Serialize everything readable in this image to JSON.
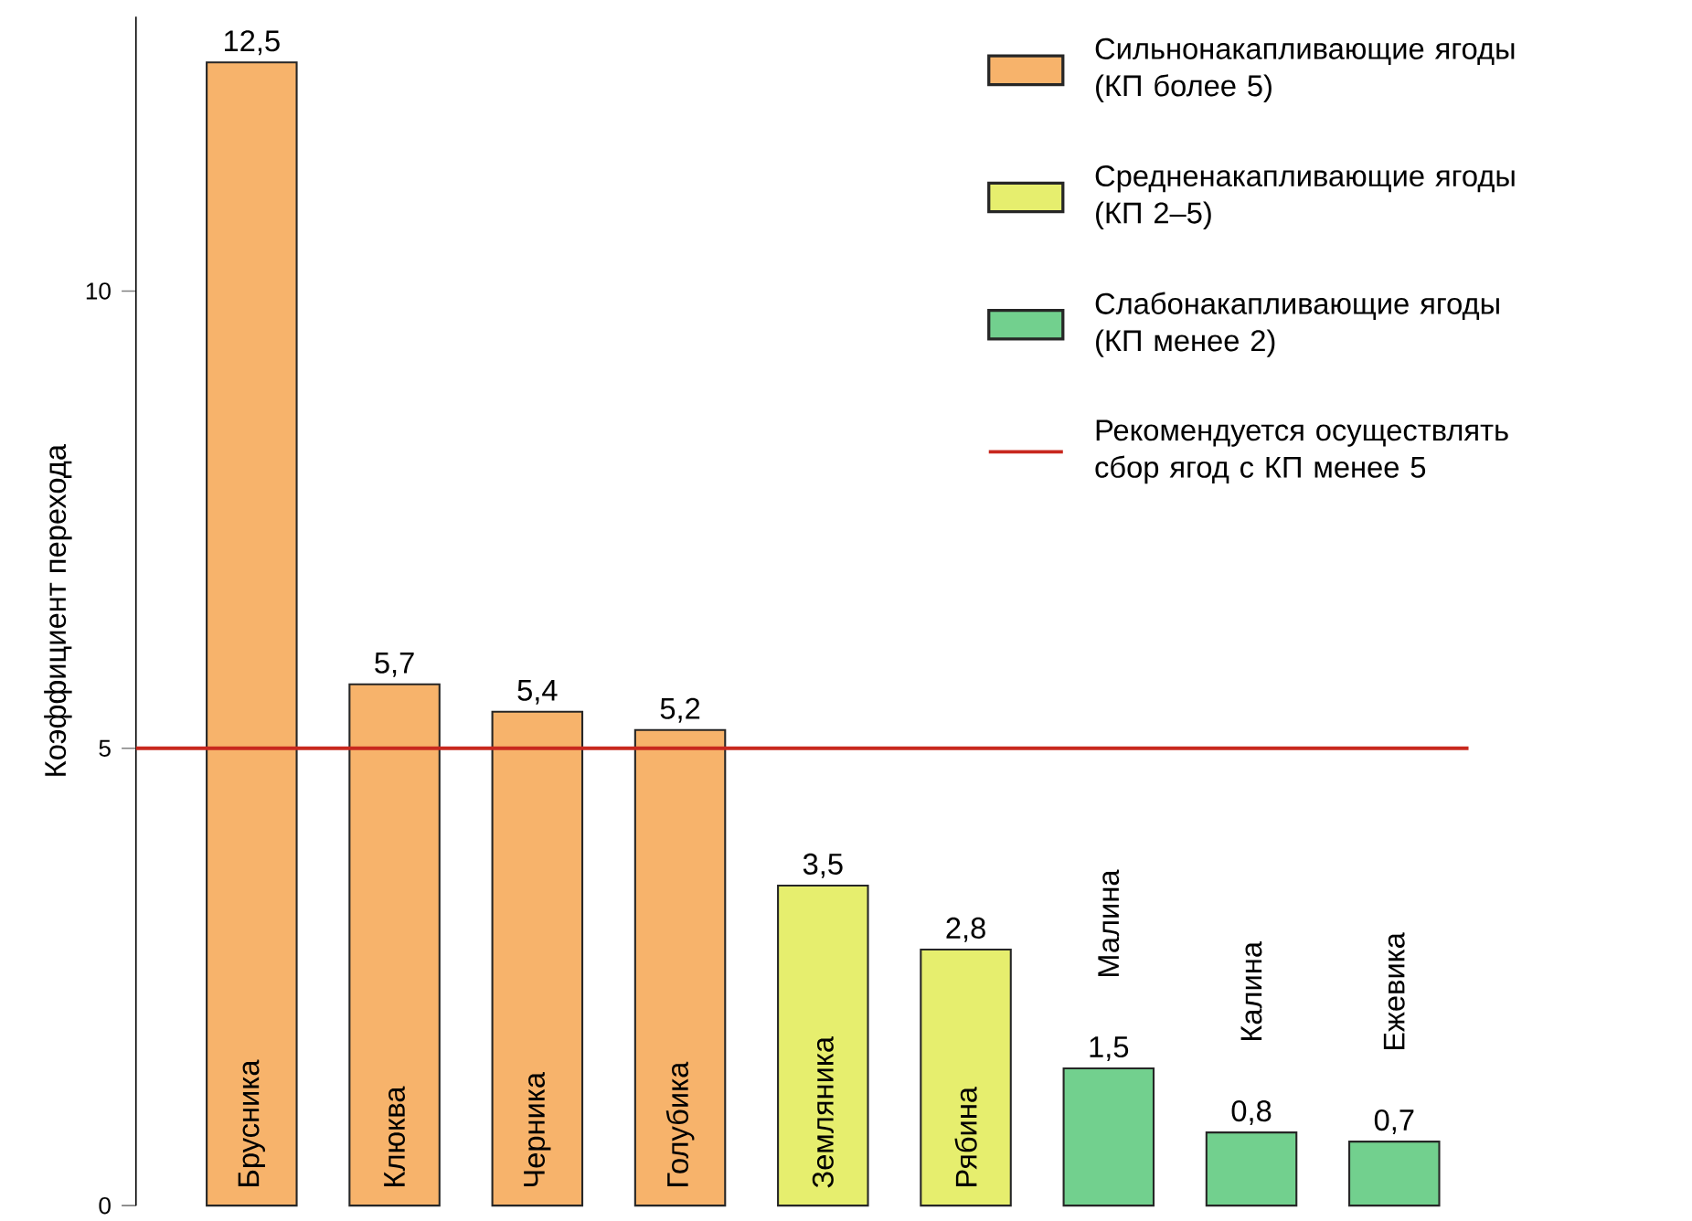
{
  "chart_data": {
    "type": "bar",
    "ylabel": "Коэффициент перехода",
    "categories": [
      "Брусника",
      "Клюква",
      "Черника",
      "Голубика",
      "Земляника",
      "Рябина",
      "Малина",
      "Калина",
      "Ежевика"
    ],
    "series": [
      {
        "name": "Сильнонакапливающие ягоды (КП более 5)",
        "color": "#f7b36b",
        "values": [
          12.5,
          5.7,
          5.4,
          5.2,
          null,
          null,
          null,
          null,
          null
        ],
        "value_labels": [
          "12,5",
          "5,7",
          "5,4",
          "5,2",
          null,
          null,
          null,
          null,
          null
        ]
      },
      {
        "name": "Средненакапливающие ягоды (КП 2–5)",
        "color": "#e6ee6e",
        "values": [
          null,
          null,
          null,
          null,
          3.5,
          2.8,
          null,
          null,
          null
        ],
        "value_labels": [
          null,
          null,
          null,
          null,
          "3,5",
          "2,8",
          null,
          null,
          null
        ]
      },
      {
        "name": "Слабонакапливающие ягоды (КП менее 2)",
        "color": "#72d08e",
        "values": [
          null,
          null,
          null,
          null,
          null,
          null,
          1.5,
          0.8,
          0.7
        ],
        "value_labels": [
          null,
          null,
          null,
          null,
          null,
          null,
          "1,5",
          "0,8",
          "0,7"
        ]
      }
    ],
    "ylim": [
      0,
      13
    ],
    "yticks": [
      0,
      5,
      10
    ],
    "ref_lines": [
      {
        "axis": "y",
        "value": 5,
        "label": "Рекомендуется осуществлять сбор ягод с КП менее 5",
        "color": "#c8281e"
      }
    ],
    "legend": "top right"
  }
}
